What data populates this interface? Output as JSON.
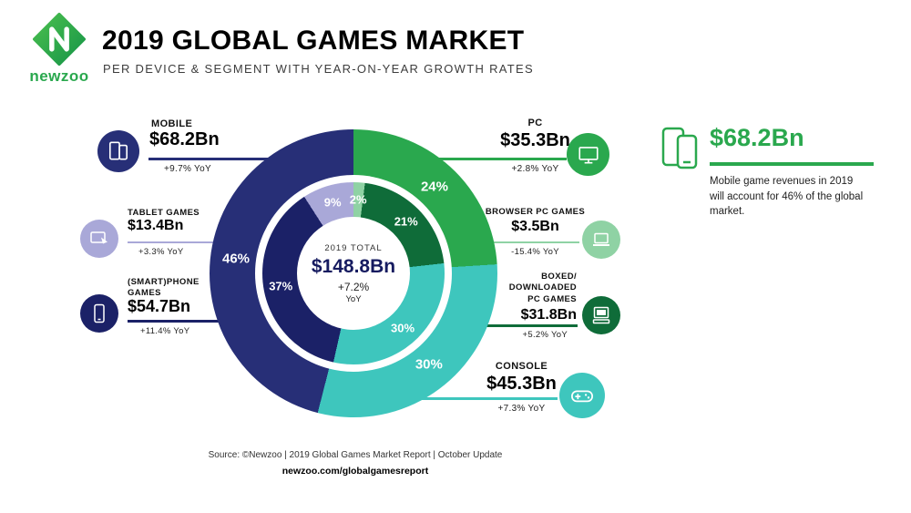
{
  "colors": {
    "brand_green": "#2aa84e",
    "navy": "#272f77",
    "navy_dark": "#1b2167",
    "teal": "#3ec6bd",
    "green_dark": "#0f6c39",
    "green_light": "#8fd2a4",
    "lavender": "#a9a8d8"
  },
  "header": {
    "logo_text": "newzoo",
    "title": "2019 GLOBAL GAMES MARKET",
    "subtitle": "PER DEVICE & SEGMENT WITH YEAR-ON-YEAR GROWTH RATES"
  },
  "chart_data": {
    "type": "donut",
    "title": "2019 Global Games Market per Device & Segment",
    "center": {
      "line1": "2019 TOTAL",
      "value": "$148.8Bn",
      "growth": "+7.2%",
      "growth_unit": "YoY"
    },
    "rings": {
      "outer": {
        "segments": [
          {
            "name": "PC",
            "pct": 24,
            "label": "24%",
            "color": "#2aa84e"
          },
          {
            "name": "Console",
            "pct": 30,
            "label": "30%",
            "color": "#3ec6bd"
          },
          {
            "name": "Mobile",
            "pct": 46,
            "label": "46%",
            "color": "#272f77"
          }
        ]
      },
      "inner": {
        "segments": [
          {
            "name": "Browser PC Games",
            "pct": 2,
            "label": "2%",
            "color": "#8fd2a4"
          },
          {
            "name": "Boxed Downloaded PC Games",
            "pct": 21,
            "label": "21%",
            "color": "#0f6c39"
          },
          {
            "name": "Console Segment",
            "pct": 30,
            "label": "30%",
            "color": "#3ec6bd"
          },
          {
            "name": "Smartphone Games",
            "pct": 37,
            "label": "37%",
            "color": "#1b2167"
          },
          {
            "name": "Tablet Games",
            "pct": 9,
            "label": "9%",
            "color": "#a9a8d8"
          }
        ]
      }
    }
  },
  "callouts": {
    "mobile": {
      "label": "MOBILE",
      "value": "$68.2Bn",
      "growth": "+9.7% YoY",
      "color": "#272f77"
    },
    "tablet": {
      "label": "TABLET GAMES",
      "value": "$13.4Bn",
      "growth": "+3.3% YoY",
      "color": "#a9a8d8"
    },
    "smartphone": {
      "label": "(SMART)PHONE\nGAMES",
      "value": "$54.7Bn",
      "growth": "+11.4% YoY",
      "color": "#1b2167"
    },
    "pc": {
      "label": "PC",
      "value": "$35.3Bn",
      "growth": "+2.8% YoY",
      "color": "#2aa84e"
    },
    "browser": {
      "label": "BROWSER PC GAMES",
      "value": "$3.5Bn",
      "growth": "-15.4% YoY",
      "color": "#8fd2a4"
    },
    "boxed": {
      "label": "BOXED/\nDOWNLOADED\nPC GAMES",
      "value": "$31.8Bn",
      "growth": "+5.2% YoY",
      "color": "#0f6c39"
    },
    "console": {
      "label": "CONSOLE",
      "value": "$45.3Bn",
      "growth": "+7.3% YoY",
      "color": "#3ec6bd"
    }
  },
  "highlight": {
    "value": "$68.2Bn",
    "text": "Mobile game revenues in 2019 will account for 46% of the global market."
  },
  "footer": {
    "source": "Source: ©Newzoo | 2019 Global Games Market Report | October Update",
    "url": "newzoo.com/globalgamesreport"
  }
}
